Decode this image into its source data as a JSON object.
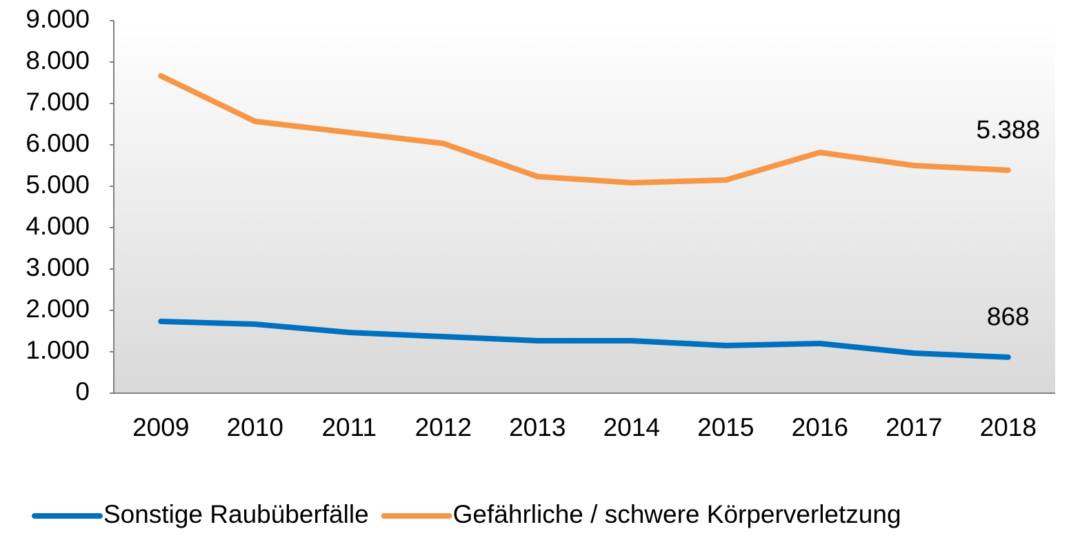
{
  "chart_data": {
    "type": "line",
    "categories": [
      "2009",
      "2010",
      "2011",
      "2012",
      "2013",
      "2014",
      "2015",
      "2016",
      "2017",
      "2018"
    ],
    "series": [
      {
        "name": "Sonstige Raubüberfälle",
        "color": "#0070c0",
        "values": [
          1733,
          1667,
          1467,
          1367,
          1267,
          1267,
          1150,
          1200,
          967,
          868
        ],
        "value_labels": [
          null,
          null,
          null,
          null,
          null,
          null,
          null,
          null,
          null,
          "868"
        ]
      },
      {
        "name": "Gefährliche / schwere Körperverletzung",
        "color": "#f79646",
        "values": [
          7667,
          6567,
          6300,
          6033,
          5233,
          5083,
          5150,
          5817,
          5500,
          5388
        ],
        "value_labels": [
          null,
          null,
          null,
          null,
          null,
          null,
          null,
          null,
          null,
          "5.388"
        ]
      }
    ],
    "ylim": [
      0,
      9000
    ],
    "yticks": [
      0,
      {
        "value": 1000,
        "label": "1.000"
      },
      {
        "value": 2000,
        "label": "2.000"
      },
      {
        "value": 3000,
        "label": "3.000"
      },
      {
        "value": 4000,
        "label": "4.000"
      },
      {
        "value": 5000,
        "label": "5.000"
      },
      {
        "value": 6000,
        "label": "6.000"
      },
      {
        "value": 7000,
        "label": "7.000"
      },
      {
        "value": 8000,
        "label": "8.000"
      },
      {
        "value": 9000,
        "label": "9.000"
      }
    ],
    "legend": "bottom"
  }
}
